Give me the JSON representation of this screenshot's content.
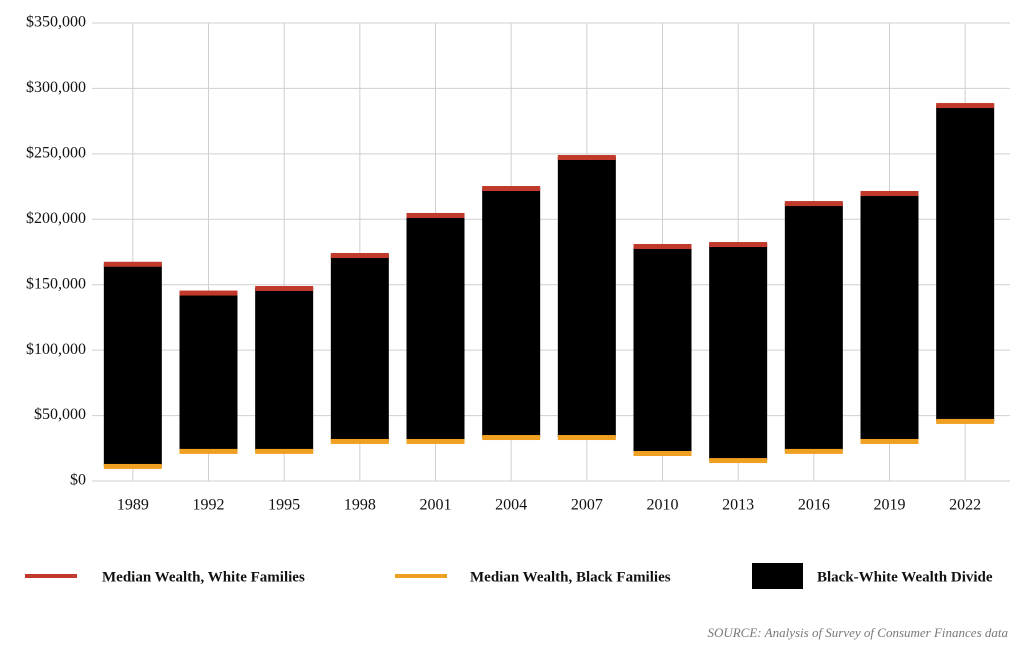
{
  "chart_data": {
    "type": "floating-bar",
    "categories": [
      "1989",
      "1992",
      "1995",
      "1998",
      "2001",
      "2004",
      "2007",
      "2010",
      "2013",
      "2016",
      "2019",
      "2022"
    ],
    "series": [
      {
        "name": "Median Wealth, White Families",
        "color": "#c0392b",
        "values": [
          166000,
          144000,
          147500,
          172700,
          203300,
          223900,
          247600,
          179600,
          181100,
          212400,
          220100,
          287300
        ]
      },
      {
        "name": "Median Wealth, Black Families",
        "color": "#f0a020",
        "values": [
          11500,
          23000,
          23000,
          30600,
          30600,
          33600,
          33600,
          21400,
          16000,
          23000,
          30600,
          45900
        ]
      }
    ],
    "range": {
      "name": "Black-White Wealth Divide",
      "color": "#000000"
    },
    "ylim": [
      0,
      350000
    ],
    "yticks": [
      {
        "value": 0,
        "label": "$0"
      },
      {
        "value": 50000,
        "label": "$50,000"
      },
      {
        "value": 100000,
        "label": "$100,000"
      },
      {
        "value": 150000,
        "label": "$150,000"
      },
      {
        "value": 200000,
        "label": "$200,000"
      },
      {
        "value": 250000,
        "label": "$250,000"
      },
      {
        "value": 300000,
        "label": "$300,000"
      },
      {
        "value": 350000,
        "label": "$350,000"
      }
    ],
    "grid": true,
    "source": "SOURCE: Analysis of Survey of Consumer Finances data"
  }
}
